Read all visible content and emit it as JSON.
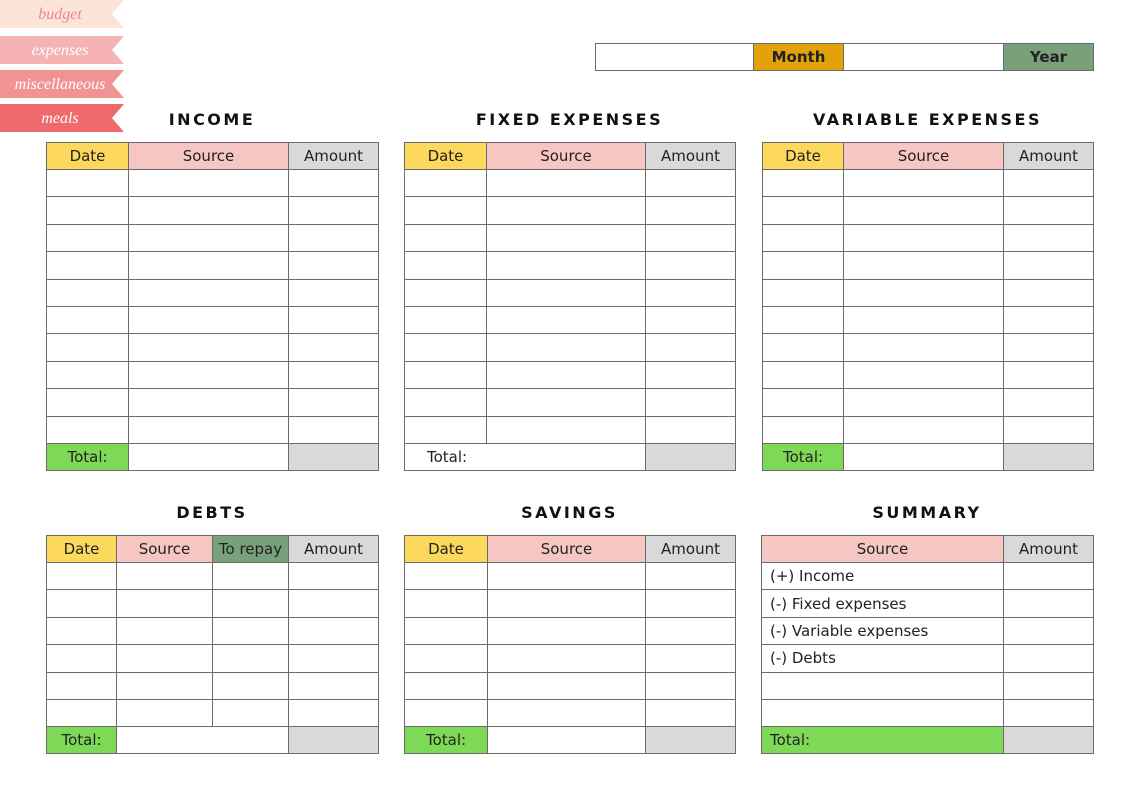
{
  "tabs": [
    "budget",
    "expenses",
    "miscellaneous",
    "meals"
  ],
  "header": {
    "month_label": "Month",
    "year_label": "Year"
  },
  "tables": {
    "income": {
      "title": "INCOME",
      "columns": [
        "Date",
        "Source",
        "Amount"
      ],
      "total_label": "Total:"
    },
    "fixed_expenses": {
      "title": "FIXED EXPENSES",
      "columns": [
        "Date",
        "Source",
        "Amount"
      ],
      "total_label": "Total:"
    },
    "variable_expenses": {
      "title": "VARIABLE EXPENSES",
      "columns": [
        "Date",
        "Source",
        "Amount"
      ],
      "total_label": "Total:"
    },
    "debts": {
      "title": "DEBTS",
      "columns": [
        "Date",
        "Source",
        "To repay",
        "Amount"
      ],
      "total_label": "Total:"
    },
    "savings": {
      "title": "SAVINGS",
      "columns": [
        "Date",
        "Source",
        "Amount"
      ],
      "total_label": "Total:"
    },
    "summary": {
      "title": "SUMMARY",
      "columns": [
        "Source",
        "Amount"
      ],
      "rows": [
        "(+) Income",
        "(-) Fixed expenses",
        "(-) Variable expenses",
        "(-) Debts"
      ],
      "total_label": "Total:"
    }
  }
}
